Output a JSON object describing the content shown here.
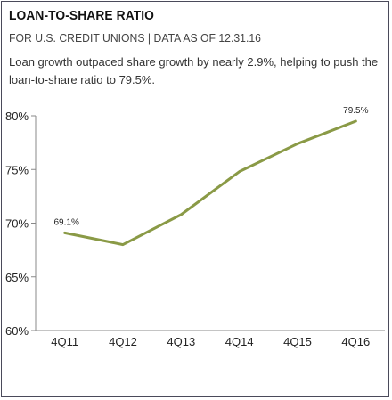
{
  "header": {
    "title": "LOAN-TO-SHARE RATIO",
    "subtitle": "FOR U.S. CREDIT UNIONS | DATA AS OF 12.31.16",
    "description": "Loan growth outpaced share growth by nearly 2.9%, helping to push the loan-to-share ratio to 79.5%."
  },
  "chart_data": {
    "type": "line",
    "categories": [
      "4Q11",
      "4Q12",
      "4Q13",
      "4Q14",
      "4Q15",
      "4Q16"
    ],
    "series": [
      {
        "values": [
          69.1,
          68.0,
          70.8,
          74.8,
          77.4,
          79.5
        ],
        "color": "#8a9a46"
      }
    ],
    "data_labels": [
      {
        "index": 0,
        "text": "69.1%"
      },
      {
        "index": 5,
        "text": "79.5%"
      }
    ],
    "y_ticks": [
      {
        "value": 60,
        "label": "60%"
      },
      {
        "value": 65,
        "label": "65%"
      },
      {
        "value": 70,
        "label": "70%"
      },
      {
        "value": 75,
        "label": "75%"
      },
      {
        "value": 80,
        "label": "80%"
      }
    ],
    "ylim": [
      60,
      80
    ],
    "grid": false,
    "xlabel": "",
    "ylabel": "",
    "axis_color": "#888888"
  }
}
